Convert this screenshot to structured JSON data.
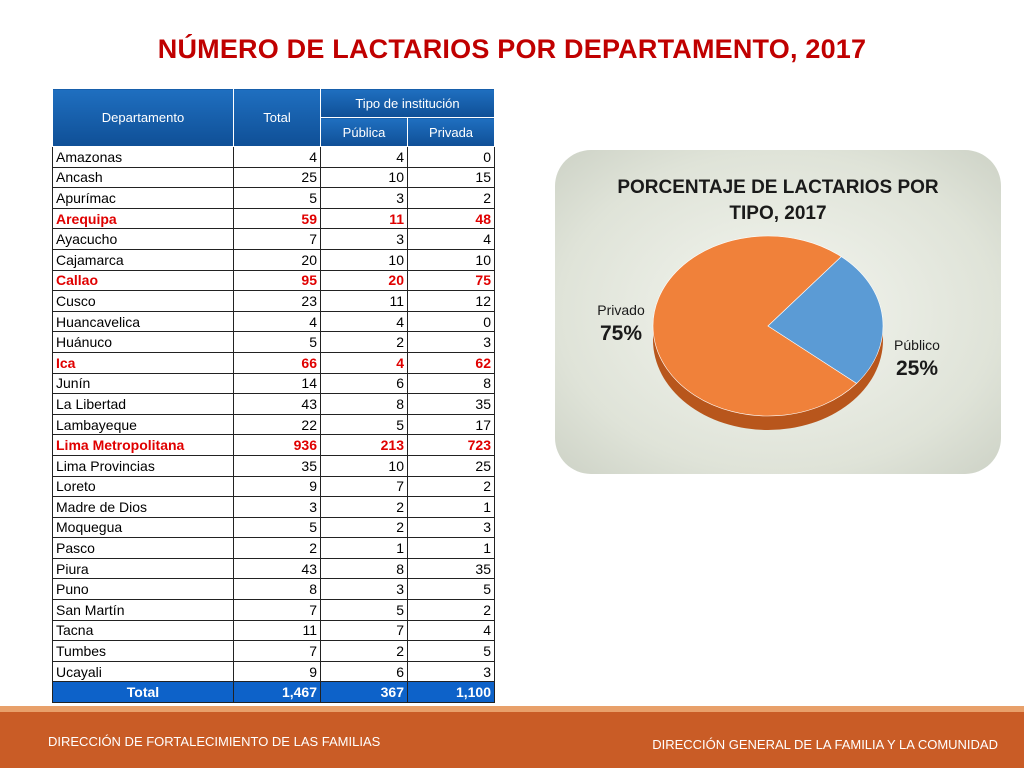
{
  "title": "NÚMERO DE LACTARIOS POR DEPARTAMENTO, 2017",
  "table": {
    "headers": {
      "departamento": "Departamento",
      "total": "Total",
      "tipo": "Tipo de institución",
      "publica": "Pública",
      "privada": "Privada"
    },
    "rows": [
      {
        "dep": "Amazonas",
        "total": "4",
        "publica": "4",
        "privada": "0",
        "highlight": false
      },
      {
        "dep": "Ancash",
        "total": "25",
        "publica": "10",
        "privada": "15",
        "highlight": false
      },
      {
        "dep": "Apurímac",
        "total": "5",
        "publica": "3",
        "privada": "2",
        "highlight": false
      },
      {
        "dep": "Arequipa",
        "total": "59",
        "publica": "11",
        "privada": "48",
        "highlight": true
      },
      {
        "dep": "Ayacucho",
        "total": "7",
        "publica": "3",
        "privada": "4",
        "highlight": false
      },
      {
        "dep": "Cajamarca",
        "total": "20",
        "publica": "10",
        "privada": "10",
        "highlight": false
      },
      {
        "dep": "Callao",
        "total": "95",
        "publica": "20",
        "privada": "75",
        "highlight": true
      },
      {
        "dep": "Cusco",
        "total": "23",
        "publica": "11",
        "privada": "12",
        "highlight": false
      },
      {
        "dep": "Huancavelica",
        "total": "4",
        "publica": "4",
        "privada": "0",
        "highlight": false
      },
      {
        "dep": "Huánuco",
        "total": "5",
        "publica": "2",
        "privada": "3",
        "highlight": false
      },
      {
        "dep": "Ica",
        "total": "66",
        "publica": "4",
        "privada": "62",
        "highlight": true
      },
      {
        "dep": "Junín",
        "total": "14",
        "publica": "6",
        "privada": "8",
        "highlight": false
      },
      {
        "dep": "La Libertad",
        "total": "43",
        "publica": "8",
        "privada": "35",
        "highlight": false
      },
      {
        "dep": "Lambayeque",
        "total": "22",
        "publica": "5",
        "privada": "17",
        "highlight": false
      },
      {
        "dep": "Lima Metropolitana",
        "total": "936",
        "publica": "213",
        "privada": "723",
        "highlight": true
      },
      {
        "dep": "Lima Provincias",
        "total": "35",
        "publica": "10",
        "privada": "25",
        "highlight": false
      },
      {
        "dep": "Loreto",
        "total": "9",
        "publica": "7",
        "privada": "2",
        "highlight": false
      },
      {
        "dep": "Madre de Dios",
        "total": "3",
        "publica": "2",
        "privada": "1",
        "highlight": false
      },
      {
        "dep": "Moquegua",
        "total": "5",
        "publica": "2",
        "privada": "3",
        "highlight": false
      },
      {
        "dep": "Pasco",
        "total": "2",
        "publica": "1",
        "privada": "1",
        "highlight": false
      },
      {
        "dep": "Piura",
        "total": "43",
        "publica": "8",
        "privada": "35",
        "highlight": false
      },
      {
        "dep": "Puno",
        "total": "8",
        "publica": "3",
        "privada": "5",
        "highlight": false
      },
      {
        "dep": "San Martín",
        "total": "7",
        "publica": "5",
        "privada": "2",
        "highlight": false
      },
      {
        "dep": "Tacna",
        "total": "11",
        "publica": "7",
        "privada": "4",
        "highlight": false
      },
      {
        "dep": "Tumbes",
        "total": "7",
        "publica": "2",
        "privada": "5",
        "highlight": false
      },
      {
        "dep": "Ucayali",
        "total": "9",
        "publica": "6",
        "privada": "3",
        "highlight": false
      }
    ],
    "total_row": {
      "dep": "Total",
      "total": "1,467",
      "publica": "367",
      "privada": "1,100"
    }
  },
  "colors": {
    "title": "#c00000",
    "highlight": "#e00000",
    "header_bg": "#1560b0",
    "privado": "#f0813a",
    "publico": "#5b9bd5",
    "footer": "#c95c26"
  },
  "chart_data": {
    "type": "pie",
    "title": "PORCENTAJE DE LACTARIOS POR TIPO, 2017",
    "slices": [
      {
        "name": "Privado",
        "value": 75,
        "label": "75%"
      },
      {
        "name": "Público",
        "value": 25,
        "label": "25%"
      }
    ]
  },
  "footer": {
    "left": "DIRECCIÓN DE FORTALECIMIENTO DE LAS FAMILIAS",
    "right": "DIRECCIÓN GENERAL DE LA FAMILIA Y LA COMUNIDAD"
  }
}
